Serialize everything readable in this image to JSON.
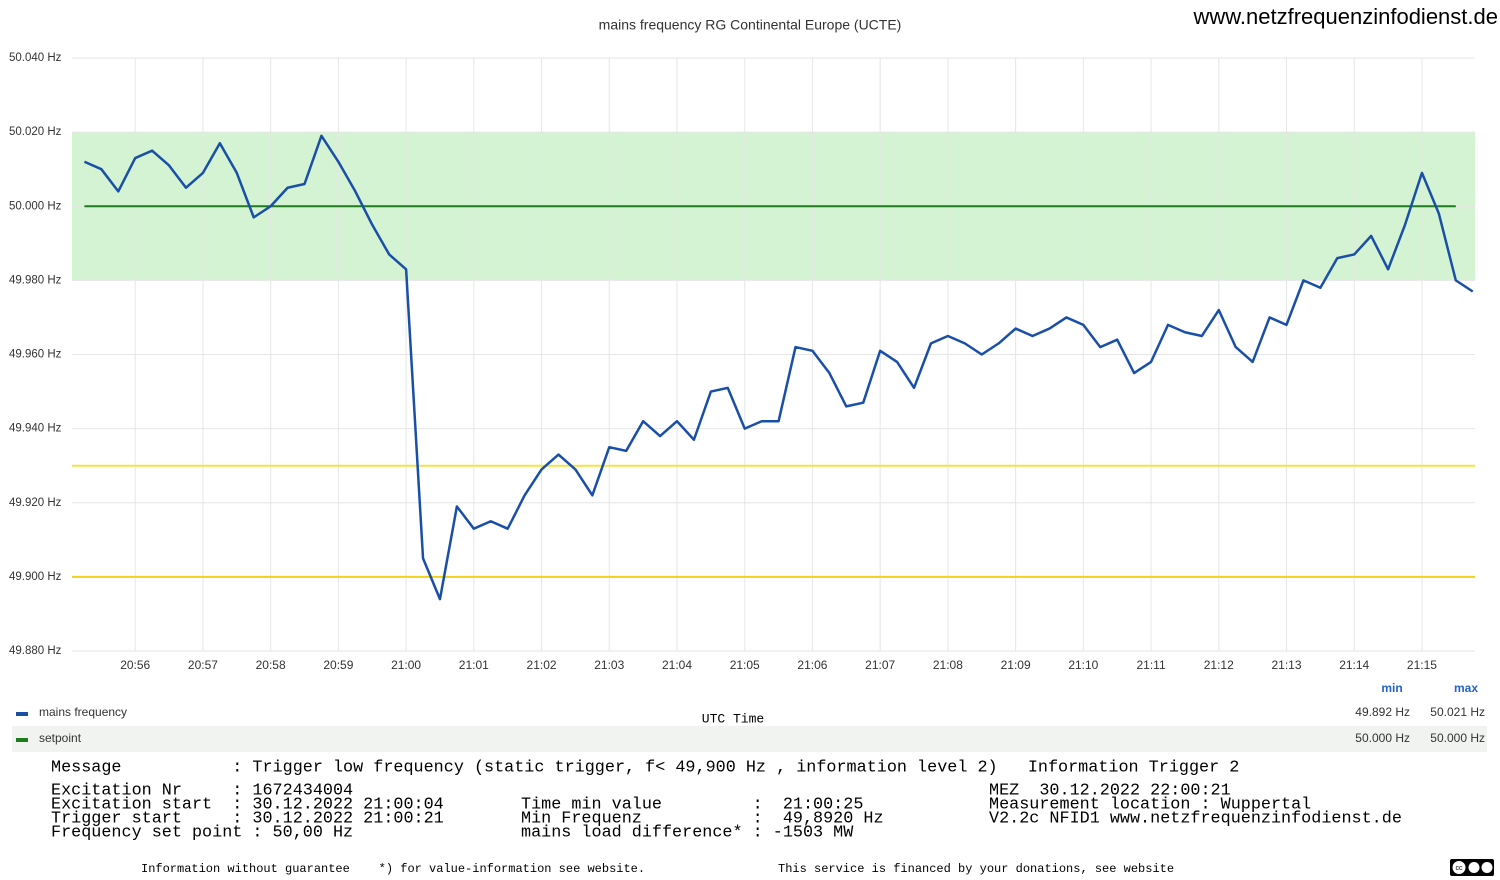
{
  "chart_data": {
    "type": "line",
    "title": "mains frequency RG Continental Europe (UCTE)",
    "watermark": "www.netzfrequenzinfodienst.de",
    "x_label": "UTC Time",
    "xlim": [
      "20:55:04",
      "21:15:47"
    ],
    "xticks": [
      "20:56",
      "20:57",
      "20:58",
      "20:59",
      "21:00",
      "21:01",
      "21:02",
      "21:03",
      "21:04",
      "21:05",
      "21:06",
      "21:07",
      "21:08",
      "21:09",
      "21:10",
      "21:11",
      "21:12",
      "21:13",
      "21:14",
      "21:15"
    ],
    "ylim": [
      49.88,
      50.04
    ],
    "yticks": [
      {
        "value": 49.88,
        "label": "49.880 Hz"
      },
      {
        "value": 49.9,
        "label": "49.900 Hz"
      },
      {
        "value": 49.92,
        "label": "49.920 Hz"
      },
      {
        "value": 49.94,
        "label": "49.940 Hz"
      },
      {
        "value": 49.96,
        "label": "49.960 Hz"
      },
      {
        "value": 49.98,
        "label": "49.980 Hz"
      },
      {
        "value": 50.0,
        "label": "50.000 Hz"
      },
      {
        "value": 50.02,
        "label": "50.020 Hz"
      },
      {
        "value": 50.04,
        "label": "50.040 Hz"
      }
    ],
    "grid": true,
    "bands": [
      {
        "from": 49.98,
        "to": 50.02,
        "color": "#d3f3d3"
      }
    ],
    "hlines": [
      {
        "value": 49.93,
        "color": "#f3e444"
      },
      {
        "value": 49.9,
        "color": "#f0d020"
      }
    ],
    "x": [
      "20:55:15",
      "20:55:30",
      "20:55:45",
      "20:56:00",
      "20:56:15",
      "20:56:30",
      "20:56:45",
      "20:57:00",
      "20:57:15",
      "20:57:30",
      "20:57:45",
      "20:58:00",
      "20:58:15",
      "20:58:30",
      "20:58:45",
      "20:59:00",
      "20:59:15",
      "20:59:30",
      "20:59:45",
      "21:00:00",
      "21:00:15",
      "21:00:30",
      "21:00:45",
      "21:01:00",
      "21:01:15",
      "21:01:30",
      "21:01:45",
      "21:02:00",
      "21:02:15",
      "21:02:30",
      "21:02:45",
      "21:03:00",
      "21:03:15",
      "21:03:30",
      "21:03:45",
      "21:04:00",
      "21:04:15",
      "21:04:30",
      "21:04:45",
      "21:05:00",
      "21:05:15",
      "21:05:30",
      "21:05:45",
      "21:06:00",
      "21:06:15",
      "21:06:30",
      "21:06:45",
      "21:07:00",
      "21:07:15",
      "21:07:30",
      "21:07:45",
      "21:08:00",
      "21:08:15",
      "21:08:30",
      "21:08:45",
      "21:09:00",
      "21:09:15",
      "21:09:30",
      "21:09:45",
      "21:10:00",
      "21:10:15",
      "21:10:30",
      "21:10:45",
      "21:11:00",
      "21:11:15",
      "21:11:30",
      "21:11:45",
      "21:12:00",
      "21:12:15",
      "21:12:30",
      "21:12:45",
      "21:13:00",
      "21:13:15",
      "21:13:30",
      "21:13:45",
      "21:14:00",
      "21:14:15",
      "21:14:30",
      "21:14:45",
      "21:15:00",
      "21:15:15",
      "21:15:30",
      "21:15:45"
    ],
    "series": [
      {
        "name": "mains frequency",
        "color": "#1a4fa8",
        "min_label": "49.892 Hz",
        "max_label": "50.021 Hz",
        "values": [
          50.012,
          50.01,
          50.004,
          50.013,
          50.015,
          50.011,
          50.005,
          50.009,
          50.017,
          50.009,
          49.997,
          50.0,
          50.005,
          50.006,
          50.019,
          50.012,
          50.004,
          49.995,
          49.987,
          49.983,
          49.905,
          49.894,
          49.919,
          49.913,
          49.915,
          49.913,
          49.922,
          49.929,
          49.933,
          49.929,
          49.922,
          49.935,
          49.934,
          49.942,
          49.938,
          49.942,
          49.937,
          49.95,
          49.951,
          49.94,
          49.942,
          49.942,
          49.962,
          49.961,
          49.955,
          49.946,
          49.947,
          49.961,
          49.958,
          49.951,
          49.963,
          49.965,
          49.963,
          49.96,
          49.963,
          49.967,
          49.965,
          49.967,
          49.97,
          49.968,
          49.962,
          49.964,
          49.955,
          49.958,
          49.968,
          49.966,
          49.965,
          49.972,
          49.962,
          49.958,
          49.97,
          49.968,
          49.98,
          49.978,
          49.986,
          49.987,
          49.992,
          49.983,
          49.995,
          50.009,
          49.998,
          49.98,
          49.977
        ]
      },
      {
        "name": "setpoint",
        "color": "#1e7b1e",
        "min_label": "50.000 Hz",
        "max_label": "50.000 Hz",
        "x": [
          "20:55:15",
          "21:15:30"
        ],
        "values": [
          50.0,
          50.0
        ]
      }
    ],
    "legend_headers": [
      "min",
      "max"
    ]
  },
  "info": {
    "message": "Message           : Trigger low frequency (static trigger, f< 49,900 Hz , information level 2)   Information Trigger 2",
    "column1": [
      "Excitation Nr     : 1672434004",
      "Excitation start  : 30.12.2022 21:00:04",
      "Trigger start     : 30.12.2022 21:00:21",
      "Frequency set point : 50,00 Hz"
    ],
    "column2": [
      "Time min value         :  21:00:25",
      "Min Frequenz           :  49,8920 Hz",
      "mains load difference* : -1503 MW"
    ],
    "column3": [
      "MEZ  30.12.2022 22:00:21",
      "Measurement location : Wuppertal",
      "V2.2c NFID1 www.netzfrequenzinfodienst.de"
    ],
    "footer_left": "Information without guarantee    *) for value-information see website.",
    "footer_right": "This service is financed by your donations, see website",
    "license": "cc"
  }
}
